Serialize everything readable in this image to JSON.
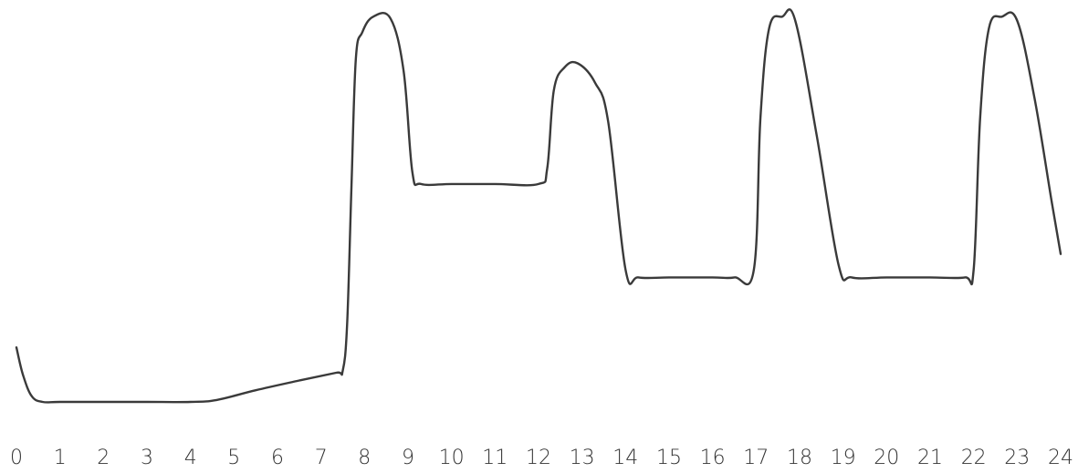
{
  "chart_data": {
    "type": "line",
    "title": "",
    "xlabel": "",
    "ylabel": "",
    "xlim": [
      0,
      24
    ],
    "ylim": [
      0,
      100
    ],
    "grid": false,
    "x_ticks": [
      "0",
      "1",
      "2",
      "3",
      "4",
      "5",
      "6",
      "7",
      "8",
      "9",
      "10",
      "11",
      "12",
      "13",
      "14",
      "15",
      "16",
      "17",
      "18",
      "19",
      "20",
      "21",
      "22",
      "23",
      "24"
    ],
    "line_color": "#3a3a3a",
    "series": [
      {
        "points": [
          [
            0.0,
            14
          ],
          [
            0.15,
            7
          ],
          [
            0.35,
            1.5
          ],
          [
            0.6,
            0
          ],
          [
            1.0,
            0
          ],
          [
            2.0,
            0
          ],
          [
            3.0,
            0
          ],
          [
            4.0,
            0
          ],
          [
            4.6,
            0.5
          ],
          [
            5.5,
            3
          ],
          [
            6.5,
            5.5
          ],
          [
            7.35,
            7.5
          ],
          [
            7.5,
            8
          ],
          [
            7.6,
            20
          ],
          [
            7.7,
            55
          ],
          [
            7.8,
            88
          ],
          [
            7.95,
            95
          ],
          [
            8.2,
            99
          ],
          [
            8.6,
            98.5
          ],
          [
            8.9,
            85
          ],
          [
            9.1,
            59
          ],
          [
            9.3,
            56
          ],
          [
            10.0,
            56
          ],
          [
            11.0,
            56
          ],
          [
            12.0,
            56
          ],
          [
            12.2,
            60
          ],
          [
            12.35,
            80
          ],
          [
            12.6,
            86
          ],
          [
            12.9,
            87
          ],
          [
            13.3,
            82
          ],
          [
            13.6,
            72
          ],
          [
            14.0,
            34
          ],
          [
            14.3,
            32
          ],
          [
            15.0,
            32
          ],
          [
            16.0,
            32
          ],
          [
            16.5,
            32
          ],
          [
            16.95,
            34
          ],
          [
            17.1,
            73
          ],
          [
            17.3,
            96
          ],
          [
            17.6,
            99
          ],
          [
            17.9,
            98
          ],
          [
            18.4,
            68
          ],
          [
            18.9,
            35
          ],
          [
            19.2,
            32
          ],
          [
            20.0,
            32
          ],
          [
            21.0,
            32
          ],
          [
            21.8,
            32
          ],
          [
            22.0,
            34
          ],
          [
            22.15,
            73
          ],
          [
            22.35,
            96
          ],
          [
            22.65,
            99
          ],
          [
            23.0,
            98
          ],
          [
            23.4,
            78
          ],
          [
            23.8,
            51
          ],
          [
            24.0,
            38
          ]
        ]
      }
    ]
  }
}
